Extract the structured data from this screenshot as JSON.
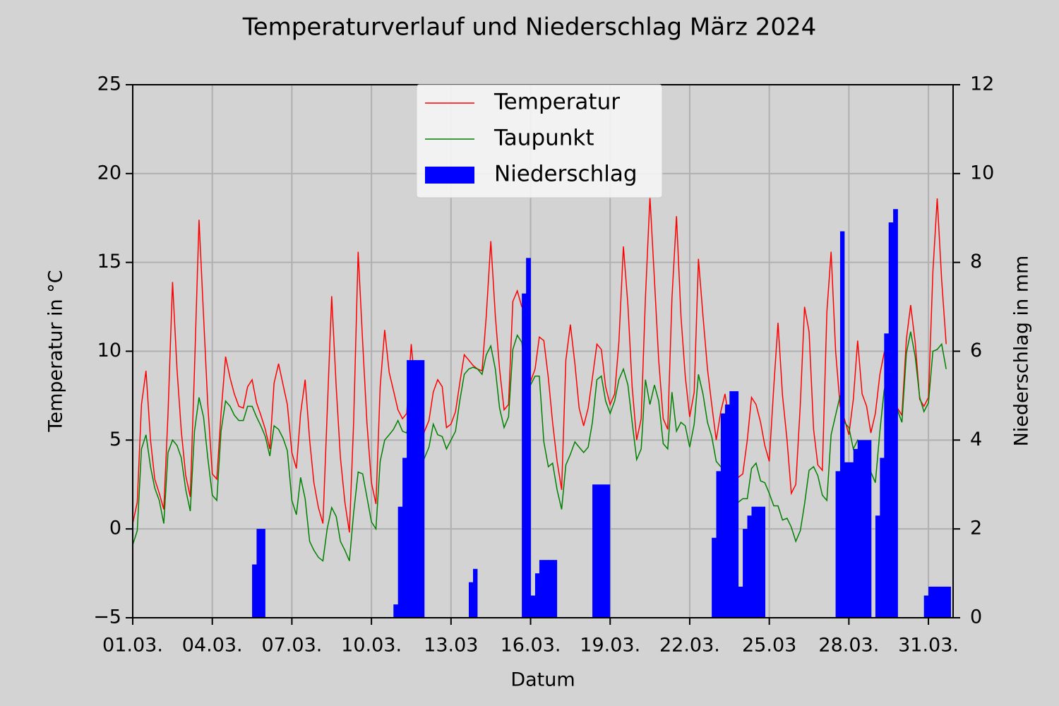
{
  "chart_data": {
    "type": "line",
    "title": "Temperaturverlauf und Niederschlag März 2024",
    "xlabel": "Datum",
    "ylabel": "Temperatur in °C",
    "y2label": "Niederschlag in mm",
    "x": [
      1.0,
      1.17,
      1.33,
      1.5,
      1.67,
      1.83,
      2.0,
      2.17,
      2.33,
      2.5,
      2.67,
      2.83,
      3.0,
      3.17,
      3.33,
      3.5,
      3.67,
      3.83,
      4.0,
      4.17,
      4.33,
      4.5,
      4.67,
      4.83,
      5.0,
      5.17,
      5.33,
      5.5,
      5.67,
      5.83,
      6.0,
      6.17,
      6.33,
      6.5,
      6.67,
      6.83,
      7.0,
      7.17,
      7.33,
      7.5,
      7.67,
      7.83,
      8.0,
      8.17,
      8.33,
      8.5,
      8.67,
      8.83,
      9.0,
      9.17,
      9.33,
      9.5,
      9.67,
      9.83,
      10.0,
      10.17,
      10.33,
      10.5,
      10.67,
      10.83,
      11.0,
      11.17,
      11.33,
      11.5,
      11.67,
      11.83,
      12.0,
      12.17,
      12.33,
      12.5,
      12.67,
      12.83,
      13.0,
      13.17,
      13.33,
      13.5,
      13.67,
      13.83,
      14.0,
      14.17,
      14.33,
      14.5,
      14.67,
      14.83,
      15.0,
      15.17,
      15.33,
      15.5,
      15.67,
      15.83,
      16.0,
      16.17,
      16.33,
      16.5,
      16.67,
      16.83,
      17.0,
      17.17,
      17.33,
      17.5,
      17.67,
      17.83,
      18.0,
      18.17,
      18.33,
      18.5,
      18.67,
      18.83,
      19.0,
      19.17,
      19.33,
      19.5,
      19.67,
      19.83,
      20.0,
      20.17,
      20.33,
      20.5,
      20.67,
      20.83,
      21.0,
      21.17,
      21.33,
      21.5,
      21.67,
      21.83,
      22.0,
      22.17,
      22.33,
      22.5,
      22.67,
      22.83,
      23.0,
      23.17,
      23.33,
      23.5,
      23.67,
      23.83,
      24.0,
      24.17,
      24.33,
      24.5,
      24.67,
      24.83,
      25.0,
      25.17,
      25.33,
      25.5,
      25.67,
      25.83,
      26.0,
      26.17,
      26.33,
      26.5,
      26.67,
      26.83,
      27.0,
      27.17,
      27.33,
      27.5,
      27.67,
      27.83,
      28.0,
      28.17,
      28.33,
      28.5,
      28.67,
      28.83,
      29.0,
      29.17,
      29.33,
      29.5,
      29.67,
      29.83,
      30.0,
      30.17,
      30.33,
      30.5,
      30.67,
      30.83,
      31.0,
      31.17,
      31.33,
      31.5,
      31.67
    ],
    "series": [
      {
        "name": "Temperatur",
        "color": "#ff0000",
        "values": [
          0.3,
          1.5,
          7.0,
          8.9,
          5.0,
          2.8,
          2.0,
          1.1,
          6.5,
          13.9,
          9.0,
          5.5,
          3.0,
          1.8,
          9.0,
          17.4,
          12.0,
          7.0,
          3.1,
          2.8,
          6.5,
          9.7,
          8.5,
          7.6,
          6.9,
          6.8,
          8.0,
          8.4,
          7.1,
          6.4,
          5.6,
          4.5,
          8.2,
          9.3,
          8.1,
          7.0,
          4.3,
          3.4,
          6.5,
          8.4,
          5.0,
          2.6,
          1.2,
          0.3,
          6.5,
          13.1,
          8.0,
          4.0,
          1.5,
          -0.2,
          6.0,
          15.6,
          10.5,
          6.0,
          2.6,
          1.4,
          8.0,
          11.2,
          8.8,
          7.8,
          6.7,
          6.2,
          6.5,
          10.4,
          7.5,
          4.6,
          5.5,
          6.1,
          7.7,
          8.4,
          8.0,
          5.7,
          5.9,
          6.6,
          8.2,
          9.8,
          9.5,
          9.2,
          9.0,
          8.9,
          12.0,
          16.2,
          12.0,
          9.0,
          6.7,
          7.0,
          12.8,
          13.4,
          12.5,
          12.3,
          8.3,
          9.0,
          10.8,
          10.6,
          8.5,
          6.0,
          3.8,
          2.2,
          9.5,
          11.5,
          9.3,
          6.8,
          5.8,
          6.8,
          8.5,
          10.4,
          10.1,
          8.0,
          7.0,
          7.6,
          10.5,
          15.9,
          12.6,
          8.0,
          5.0,
          6.2,
          13.0,
          18.7,
          14.0,
          9.5,
          6.2,
          5.6,
          13.0,
          17.6,
          12.0,
          8.6,
          6.3,
          7.7,
          15.2,
          12.0,
          9.0,
          7.0,
          5.0,
          6.6,
          7.6,
          6.0,
          4.3,
          2.9,
          3.1,
          5.0,
          7.4,
          7.0,
          6.0,
          4.7,
          3.8,
          8.0,
          11.6,
          7.5,
          5.0,
          2.0,
          2.5,
          7.0,
          12.5,
          11.1,
          5.6,
          3.6,
          3.3,
          12.2,
          15.6,
          10.0,
          6.9,
          6.2,
          5.3,
          7.3,
          10.6,
          7.6,
          6.9,
          5.4,
          6.5,
          8.7,
          9.9,
          9.5,
          9.3,
          6.8,
          6.4,
          10.7,
          12.6,
          10.5,
          7.3,
          6.9,
          7.4,
          14.5,
          18.6,
          14.0,
          10.4
        ]
      },
      {
        "name": "Taupunkt",
        "color": "#008000",
        "values": [
          -0.9,
          -0.1,
          4.5,
          5.3,
          3.5,
          2.3,
          1.6,
          0.3,
          4.3,
          5.0,
          4.7,
          4.0,
          2.2,
          1.0,
          5.5,
          7.4,
          6.3,
          4.0,
          1.9,
          1.6,
          5.5,
          7.2,
          6.9,
          6.4,
          6.1,
          6.1,
          6.9,
          6.9,
          6.3,
          5.8,
          5.2,
          4.1,
          5.8,
          5.6,
          5.1,
          4.4,
          1.6,
          0.8,
          2.9,
          1.7,
          -0.7,
          -1.2,
          -1.6,
          -1.8,
          0.0,
          1.2,
          0.7,
          -0.7,
          -1.2,
          -1.8,
          0.9,
          3.2,
          3.1,
          1.8,
          0.4,
          0.0,
          3.8,
          5.0,
          5.3,
          5.6,
          6.1,
          5.5,
          5.4,
          7.0,
          5.8,
          3.3,
          4.0,
          4.6,
          5.9,
          5.3,
          5.2,
          4.5,
          5.0,
          5.5,
          7.2,
          8.7,
          9.0,
          9.1,
          9.0,
          8.7,
          9.8,
          10.3,
          9.0,
          6.8,
          5.7,
          6.3,
          10.1,
          10.9,
          10.5,
          8.3,
          8.1,
          8.6,
          8.6,
          4.9,
          3.5,
          3.7,
          2.2,
          1.1,
          3.6,
          4.2,
          4.9,
          4.6,
          4.3,
          4.6,
          6.0,
          8.4,
          8.6,
          7.2,
          6.5,
          7.2,
          8.4,
          9.0,
          8.1,
          6.0,
          3.9,
          4.5,
          8.4,
          7.0,
          8.1,
          7.2,
          4.8,
          4.5,
          7.7,
          5.5,
          6.0,
          5.8,
          4.6,
          5.9,
          8.7,
          7.6,
          6.0,
          5.2,
          3.8,
          3.5,
          3.3,
          2.5,
          1.9,
          1.5,
          1.7,
          1.7,
          3.4,
          3.7,
          2.7,
          2.6,
          2.0,
          1.3,
          1.3,
          0.5,
          0.6,
          0.1,
          -0.7,
          -0.1,
          1.4,
          3.3,
          3.5,
          3.0,
          1.9,
          1.6,
          5.3,
          6.4,
          7.5,
          6.0,
          5.7,
          4.5,
          5.0,
          4.6,
          4.6,
          3.2,
          2.6,
          5.5,
          7.8,
          8.7,
          8.2,
          6.7,
          6.0,
          9.9,
          11.1,
          9.7,
          7.4,
          6.6,
          7.1,
          10.0,
          10.1,
          10.4,
          9.0
        ]
      },
      {
        "name": "Niederschlag",
        "color": "#0000ff",
        "type": "bar",
        "axis": "y2",
        "x": [
          5.5,
          5.67,
          5.83,
          10.83,
          11.0,
          11.17,
          11.33,
          11.5,
          11.67,
          11.83,
          13.67,
          13.83,
          15.67,
          15.83,
          16.0,
          16.17,
          16.33,
          16.5,
          16.67,
          16.83,
          18.33,
          18.5,
          18.67,
          18.83,
          22.83,
          23.0,
          23.17,
          23.33,
          23.5,
          23.67,
          23.83,
          24.0,
          24.17,
          24.33,
          24.5,
          24.67,
          27.5,
          27.67,
          27.83,
          28.0,
          28.17,
          28.33,
          28.5,
          28.67,
          29.0,
          29.17,
          29.33,
          29.5,
          29.67,
          30.83,
          31.0,
          31.17,
          31.33,
          31.5,
          31.67
        ],
        "values": [
          1.2,
          2.0,
          2.0,
          0.3,
          2.5,
          3.6,
          5.8,
          5.8,
          5.8,
          5.8,
          0.8,
          1.1,
          7.3,
          8.1,
          0.5,
          1.0,
          1.3,
          1.3,
          1.3,
          1.3,
          3.0,
          3.0,
          3.0,
          3.0,
          1.8,
          3.3,
          4.6,
          4.8,
          5.1,
          5.1,
          0.7,
          2.0,
          2.3,
          2.5,
          2.5,
          2.5,
          3.3,
          8.7,
          3.5,
          3.5,
          3.8,
          4.0,
          4.0,
          4.0,
          2.3,
          3.6,
          6.4,
          8.9,
          9.2,
          0.5,
          0.7,
          0.7,
          0.7,
          0.7,
          0.7
        ]
      }
    ],
    "xlim": [
      1,
      31.93
    ],
    "xticks": [
      {
        "value": 1,
        "label": "01.03."
      },
      {
        "value": 4,
        "label": "04.03."
      },
      {
        "value": 7,
        "label": "07.03."
      },
      {
        "value": 10,
        "label": "10.03."
      },
      {
        "value": 13,
        "label": "13.03"
      },
      {
        "value": 16,
        "label": "16.03."
      },
      {
        "value": 19,
        "label": "19.03."
      },
      {
        "value": 22,
        "label": "22.03."
      },
      {
        "value": 25,
        "label": "25.03"
      },
      {
        "value": 28,
        "label": "28.03."
      },
      {
        "value": 31,
        "label": "31.03."
      }
    ],
    "ylim": [
      -5,
      25
    ],
    "yticks": [
      {
        "value": -5,
        "label": "−5"
      },
      0,
      5,
      10,
      15,
      20,
      25
    ],
    "y2lim": [
      0,
      12
    ],
    "y2ticks": [
      0,
      2,
      4,
      6,
      8,
      10,
      12
    ],
    "grid": true,
    "legend": "upper center"
  }
}
